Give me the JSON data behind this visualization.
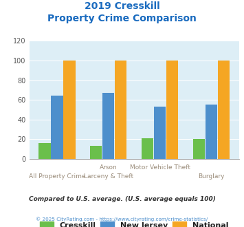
{
  "title_line1": "2019 Cresskill",
  "title_line2": "Property Crime Comparison",
  "categories_top": [
    "",
    "Arson",
    "Motor Vehicle Theft",
    ""
  ],
  "categories_bottom": [
    "All Property Crime",
    "Larceny & Theft",
    "",
    "Burglary"
  ],
  "cresskill": [
    16,
    13,
    21,
    20
  ],
  "new_jersey": [
    64,
    67,
    53,
    55
  ],
  "national": [
    100,
    100,
    100,
    100
  ],
  "colors": {
    "cresskill": "#6abf4b",
    "new_jersey": "#4d8fcc",
    "national": "#f5a623"
  },
  "ylim": [
    0,
    120
  ],
  "yticks": [
    0,
    20,
    40,
    60,
    80,
    100,
    120
  ],
  "title_color": "#1a6bbf",
  "bg_color": "#ddeef6",
  "footnote1": "Compared to U.S. average. (U.S. average equals 100)",
  "footnote2": "© 2025 CityRating.com - https://www.cityrating.com/crime-statistics/",
  "footnote1_color": "#333333",
  "footnote2_color": "#4d8fcc",
  "label_color": "#9a8c7a"
}
